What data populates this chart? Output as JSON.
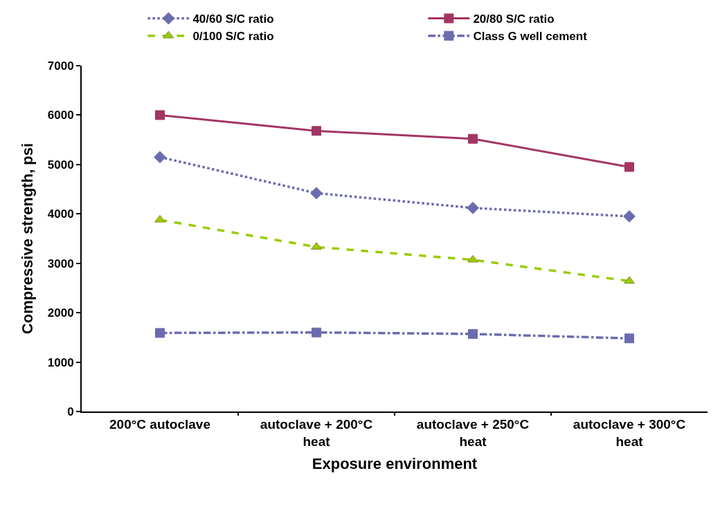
{
  "chart_data": {
    "type": "line",
    "xlabel": "Exposure environment",
    "ylabel": "Compressive strength, psi",
    "categories": [
      "200°C autoclave",
      "autoclave + 200°C\nheat",
      "autoclave + 250°C\nheat",
      "autoclave + 300°C\nheat"
    ],
    "series": [
      {
        "name": "40/60 S/C ratio",
        "color": "#6b6bb0",
        "marker": "diamond",
        "line_style": "dotted",
        "values": [
          5150,
          4420,
          4120,
          3950
        ]
      },
      {
        "name": "20/80 S/C ratio",
        "color": "#a33563",
        "marker": "square",
        "line_style": "solid",
        "values": [
          6000,
          5680,
          5520,
          4950
        ]
      },
      {
        "name": "0/100 S/C ratio",
        "color": "#99cc00",
        "marker": "triangle",
        "line_style": "dashed",
        "values": [
          3880,
          3330,
          3070,
          2640
        ]
      },
      {
        "name": "Class G well cement",
        "color": "#6b6bb0",
        "marker": "square",
        "line_style": "dashdot",
        "values": [
          1590,
          1600,
          1570,
          1480
        ]
      }
    ],
    "ylim": [
      0,
      7000
    ],
    "yticks": [
      0,
      1000,
      2000,
      3000,
      4000,
      5000,
      6000,
      7000
    ],
    "legend": "top"
  }
}
